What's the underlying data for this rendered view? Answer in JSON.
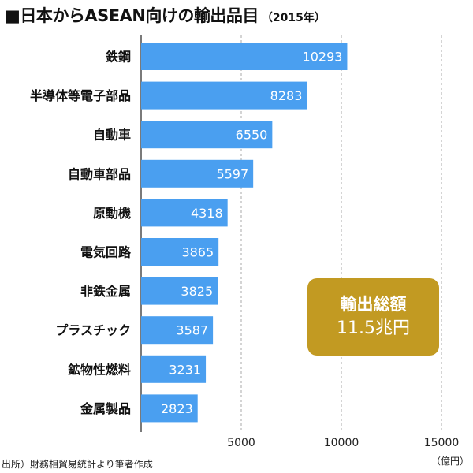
{
  "title": {
    "main": "■日本からASEAN向けの輸出品目",
    "sub": "（2015年）"
  },
  "total_box": {
    "label": "輸出総額",
    "value": "11.5兆円"
  },
  "source": "出所）財務相貿易統計より筆者作成",
  "unit": "（億円）",
  "colors": {
    "bar": "#4a9ff0",
    "bar_label": "#ffffff",
    "grid": "#aaaaaa",
    "total_box": "#c29a22"
  },
  "chart_data": {
    "type": "bar",
    "orientation": "horizontal",
    "categories": [
      "鉄鋼",
      "半導体等電子部品",
      "自動車",
      "自動車部品",
      "原動機",
      "電気回路",
      "非鉄金属",
      "プラスチック",
      "鉱物性燃料",
      "金属製品"
    ],
    "values": [
      10293,
      8283,
      6550,
      5597,
      4318,
      3865,
      3825,
      3587,
      3231,
      2823
    ],
    "xlim": [
      0,
      15000
    ],
    "xticks": [
      5000,
      10000,
      15000
    ],
    "grid": true,
    "data_labels": true
  }
}
